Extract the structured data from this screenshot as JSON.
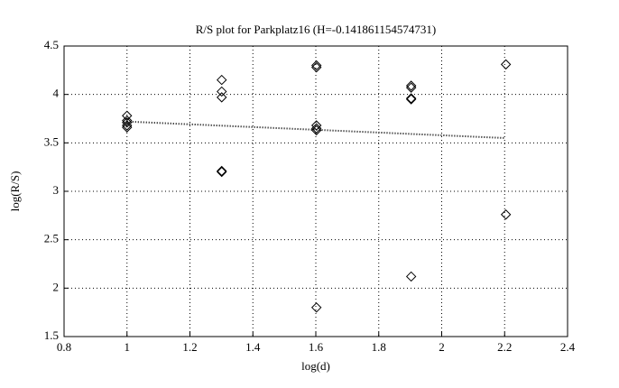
{
  "chart_data": {
    "type": "scatter",
    "title": "R/S plot for Parkplatz16 (H=-0.141861154574731)",
    "x_label": "log(d)",
    "y_label": "log(R/S)",
    "xlim": [
      0.8,
      2.4
    ],
    "xticks": [
      0.8,
      1,
      1.2,
      1.4,
      1.6,
      1.8,
      2,
      2.2,
      2.4
    ],
    "ylim": [
      1.5,
      4.5
    ],
    "yticks": [
      1.5,
      2,
      2.5,
      3,
      3.5,
      4,
      4.5
    ],
    "grid": true,
    "series": [
      {
        "type": "scatter",
        "color": "#000000",
        "x": [
          1,
          1,
          1,
          1,
          1,
          1.301,
          1.301,
          1.301,
          1.301,
          1.301,
          1.602,
          1.602,
          1.602,
          1.602,
          1.602,
          1.602,
          1.903,
          1.903,
          1.903,
          1.903,
          1.903,
          2.204,
          2.204
        ],
        "values": [
          3.78,
          3.73,
          3.71,
          3.68,
          3.66,
          4.15,
          4.03,
          3.97,
          3.21,
          3.2,
          4.3,
          4.28,
          3.68,
          3.65,
          3.63,
          1.8,
          4.09,
          4.07,
          3.96,
          3.95,
          2.12,
          4.31,
          2.76
        ]
      },
      {
        "type": "line",
        "color": "#000000",
        "x": [
          1,
          2.2
        ],
        "values": [
          3.72,
          3.55
        ]
      }
    ]
  }
}
